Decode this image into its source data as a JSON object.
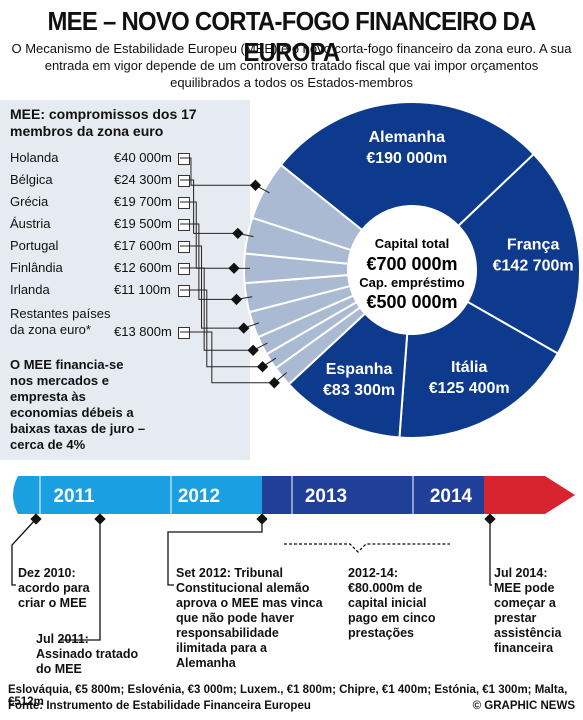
{
  "title": "MEE – NOVO CORTA-FOGO FINANCEIRO DA EUROPA",
  "subtitle": "O Mecanismo de Estabilidade Europeu (MEE) é o novo corta-fogo financeiro da zona euro. A sua entrada em vigor depende de um controverso tratado fiscal que vai impor orçamentos equilibrados a todos os Estados-membros",
  "left_heading": "MEE: compromissos dos 17 membros da zona euro",
  "countries": [
    {
      "name": "Holanda",
      "amount": "€40 000m"
    },
    {
      "name": "Bélgica",
      "amount": "€24 300m"
    },
    {
      "name": "Grécia",
      "amount": "€19 700m"
    },
    {
      "name": "Áustria",
      "amount": "€19 500m"
    },
    {
      "name": "Portugal",
      "amount": "€17 600m"
    },
    {
      "name": "Finlândia",
      "amount": "€12 600m"
    },
    {
      "name": "Irlanda",
      "amount": "€11 100m"
    },
    {
      "name": "Restantes países da zona euro*",
      "amount": "€13 800m"
    }
  ],
  "note": "O MEE financia-se nos mercados e empresta às economias débeis a baixas taxas de juro – cerca de 4%",
  "center": {
    "l1": "Capital total",
    "l2": "€700 000m",
    "l3": "Cap. empréstimo",
    "l4": "€500 000m"
  },
  "colors": {
    "dark": "#0d3a8c",
    "light": "#a9bad2",
    "timeline_light": "#1aa0e0",
    "timeline_dark": "#1f3f99",
    "timeline_red": "#d8242e"
  },
  "chart_data": {
    "type": "pie",
    "title": "MEE: compromissos dos 17 membros da zona euro",
    "total": 700000,
    "unit": "€m",
    "slices": [
      {
        "name": "Alemanha",
        "label": "€190 000m",
        "value": 190000,
        "highlight": true
      },
      {
        "name": "França",
        "label": "€142 700m",
        "value": 142700,
        "highlight": true
      },
      {
        "name": "Itália",
        "label": "€125 400m",
        "value": 125400,
        "highlight": true
      },
      {
        "name": "Espanha",
        "label": "€83 300m",
        "value": 83300,
        "highlight": true
      },
      {
        "name": "Restantes países da zona euro*",
        "value": 13800,
        "highlight": false
      },
      {
        "name": "Irlanda",
        "value": 11100,
        "highlight": false
      },
      {
        "name": "Finlândia",
        "value": 12600,
        "highlight": false
      },
      {
        "name": "Portugal",
        "value": 17600,
        "highlight": false
      },
      {
        "name": "Áustria",
        "value": 19500,
        "highlight": false
      },
      {
        "name": "Grécia",
        "value": 19700,
        "highlight": false
      },
      {
        "name": "Bélgica",
        "value": 24300,
        "highlight": false
      },
      {
        "name": "Holanda",
        "value": 40000,
        "highlight": false
      }
    ]
  },
  "timeline": {
    "years": [
      "2011",
      "2012",
      "2013",
      "2014"
    ],
    "events": [
      {
        "date": "Dez 2010",
        "text": "Dez 2010: acordo para criar o MEE"
      },
      {
        "date": "Jul 2011",
        "text": "Jul 2011: Assinado tratado do MEE"
      },
      {
        "date": "Set 2012",
        "text": "Set 2012: Tribunal Constitucional alemão aprova o MEE mas vinca que não pode haver responsabilidade ilimitada para a Alemanha"
      },
      {
        "date": "2012-14",
        "text": "2012-14: €80.000m de capital inicial pago em cinco prestações"
      },
      {
        "date": "Jul 2014",
        "text": "Jul 2014: MEE pode começar a prestar assistência financeira"
      }
    ]
  },
  "footer_countries": "Eslováquia, €5 800m; Eslovénia, €3 000m; Luxem., €1 800m; Chipre, €1 400m; Estónia, €1 300m; Malta, €512m",
  "source": "Fonte: Instrumento de Estabilidade Financeira Europeu",
  "credit": "© GRAPHIC NEWS"
}
